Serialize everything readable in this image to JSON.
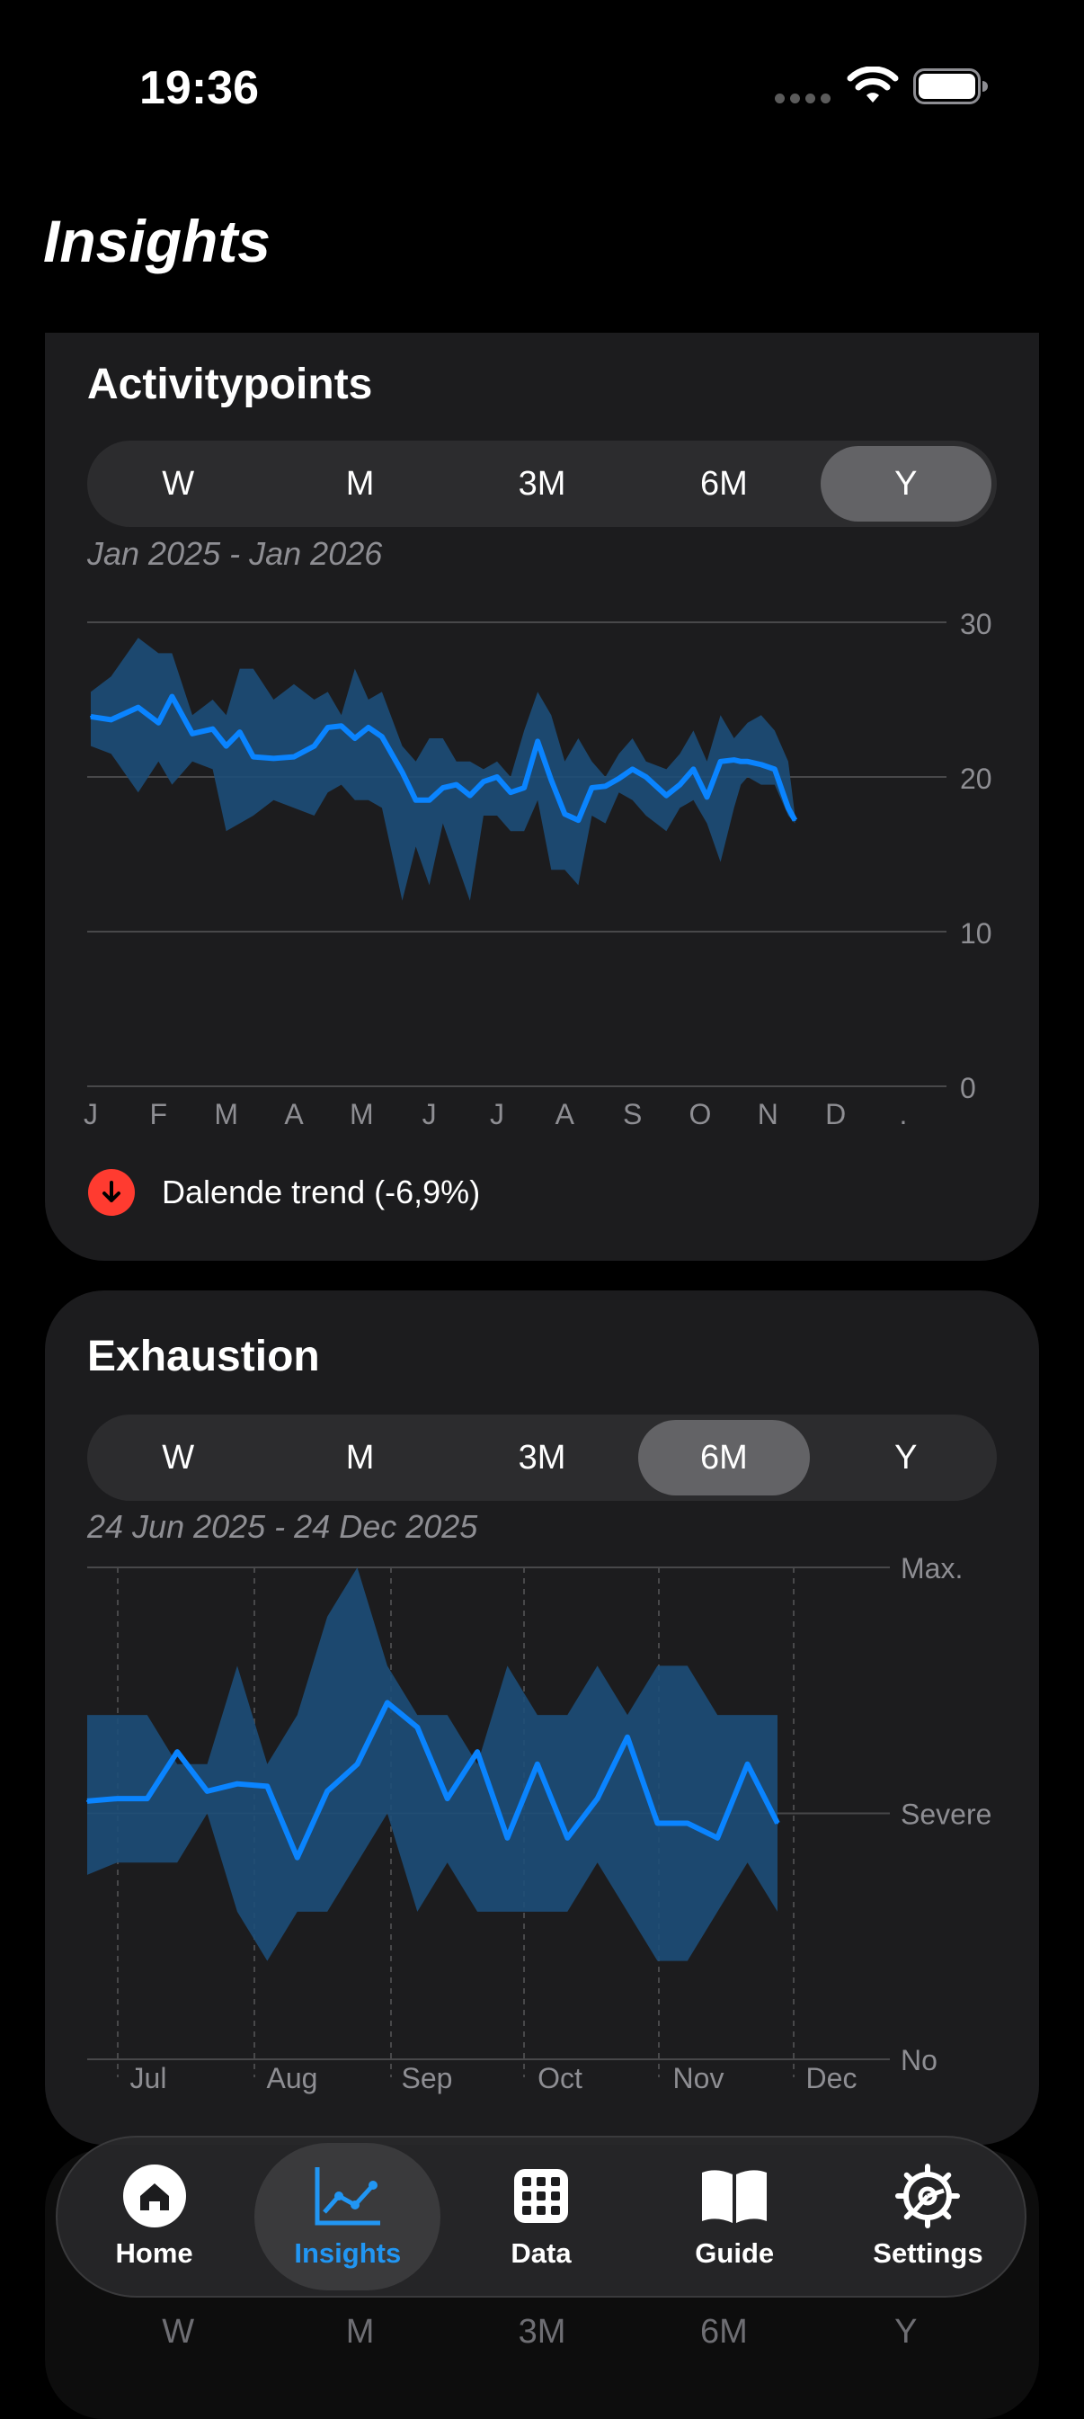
{
  "status": {
    "time": "19:36"
  },
  "page": {
    "title": "Insights"
  },
  "activity": {
    "title": "Activitypoints",
    "periods": [
      "W",
      "M",
      "3M",
      "6M",
      "Y"
    ],
    "selected": "Y",
    "date_range": "Jan 2025 - Jan 2026",
    "trend_text": "Dalende trend (-6,9%)"
  },
  "exhaustion": {
    "title": "Exhaustion",
    "periods": [
      "W",
      "M",
      "3M",
      "6M",
      "Y"
    ],
    "selected": "6M",
    "date_range": "24 Jun 2025 - 24 Dec 2025"
  },
  "tabs": [
    {
      "label": "Home",
      "icon": "house-icon",
      "active": false
    },
    {
      "label": "Insights",
      "icon": "chart-line-icon",
      "active": true
    },
    {
      "label": "Data",
      "icon": "grid-icon",
      "active": false
    },
    {
      "label": "Guide",
      "icon": "book-icon",
      "active": false
    },
    {
      "label": "Settings",
      "icon": "gear-icon",
      "active": false
    }
  ],
  "colors": {
    "line": "#0a84ff",
    "band": "#1d4e78",
    "trend_down": "#ff3b30"
  },
  "chart_data": [
    {
      "type": "line",
      "title": "Activitypoints",
      "x_tick_labels": [
        "J",
        "F",
        "M",
        "A",
        "M",
        "J",
        "J",
        "A",
        "S",
        "O",
        "N",
        "D",
        "."
      ],
      "y_ticks": [
        0,
        10,
        20,
        30
      ],
      "ylim": [
        0,
        30
      ],
      "grid": true,
      "x": [
        0,
        0.3,
        0.7,
        1.0,
        1.2,
        1.5,
        1.8,
        2.0,
        2.2,
        2.4,
        2.7,
        3.0,
        3.3,
        3.5,
        3.7,
        3.9,
        4.1,
        4.3,
        4.6,
        4.8,
        5.0,
        5.2,
        5.4,
        5.6,
        5.8,
        6.0,
        6.2,
        6.4,
        6.6,
        6.8,
        7.0,
        7.2,
        7.4,
        7.6,
        7.8,
        8.0,
        8.2,
        8.5,
        8.7,
        8.9,
        9.1,
        9.3,
        9.5,
        9.6,
        9.7,
        9.9,
        10.1,
        10.3,
        10.4
      ],
      "series": [
        {
          "values": [
            23.9,
            23.7,
            24.5,
            23.5,
            25.2,
            22.8,
            23.1,
            22.0,
            22.9,
            21.3,
            21.2,
            21.3,
            22.0,
            23.2,
            23.3,
            22.5,
            23.2,
            22.6,
            20.3,
            18.5,
            18.5,
            19.3,
            19.5,
            18.8,
            19.7,
            20.0,
            19.0,
            19.3,
            22.3,
            19.8,
            17.6,
            17.2,
            19.3,
            19.4,
            19.9,
            20.5,
            20.0,
            18.8,
            19.5,
            20.5,
            18.7,
            21.0,
            21.1,
            21.0,
            21.0,
            20.8,
            20.5,
            18.0,
            17.2
          ]
        },
        {
          "band_high": [
            25.5,
            26.5,
            29.0,
            28.0,
            28.0,
            24.0,
            25.0,
            24.0,
            27.0,
            27.0,
            25.0,
            26.0,
            25.0,
            25.5,
            24.0,
            27.0,
            25.0,
            25.5,
            22.0,
            21.0,
            22.5,
            22.5,
            21.0,
            21.0,
            20.5,
            21.0,
            20.0,
            23.0,
            25.5,
            24.0,
            21.0,
            22.5,
            21.0,
            20.0,
            21.5,
            22.5,
            21.0,
            20.5,
            21.5,
            23.0,
            21.0,
            24.0,
            22.5,
            23.0,
            23.5,
            24.0,
            23.0,
            21.0,
            17.5
          ]
        },
        {
          "band_low": [
            22.0,
            21.5,
            19.0,
            21.0,
            19.5,
            21.0,
            20.5,
            16.5,
            17.0,
            17.5,
            18.5,
            18.0,
            17.5,
            19.0,
            19.5,
            18.5,
            18.5,
            18.0,
            12.0,
            15.5,
            13.0,
            17.0,
            14.5,
            12.0,
            17.5,
            17.5,
            16.5,
            16.5,
            18.5,
            14.0,
            14.0,
            13.0,
            17.5,
            17.0,
            19.0,
            18.5,
            17.5,
            16.5,
            18.0,
            18.5,
            17.0,
            14.5,
            18.0,
            19.5,
            20.0,
            19.5,
            19.5,
            17.5,
            17.0
          ]
        }
      ]
    },
    {
      "type": "line",
      "title": "Exhaustion",
      "x_tick_labels": [
        "Jul",
        "Aug",
        "Sep",
        "Oct",
        "Nov",
        "Dec"
      ],
      "y_tick_labels": [
        "No",
        "Severe",
        "Max."
      ],
      "ylim": [
        0,
        2
      ],
      "grid": true,
      "series": [
        {
          "values": [
            1.05,
            1.06,
            1.06,
            1.25,
            1.09,
            1.12,
            1.11,
            0.82,
            1.09,
            1.2,
            1.45,
            1.35,
            1.06,
            1.25,
            0.9,
            1.2,
            0.9,
            1.06,
            1.31,
            0.96,
            0.96,
            0.9,
            1.2,
            0.96
          ]
        },
        {
          "band_high": [
            1.4,
            1.4,
            1.4,
            1.2,
            1.2,
            1.6,
            1.2,
            1.4,
            1.8,
            2.0,
            1.6,
            1.4,
            1.4,
            1.2,
            1.6,
            1.4,
            1.4,
            1.6,
            1.4,
            1.6,
            1.6,
            1.4,
            1.4,
            1.4
          ]
        },
        {
          "band_low": [
            0.75,
            0.8,
            0.8,
            0.8,
            1.0,
            0.6,
            0.4,
            0.6,
            0.6,
            0.8,
            1.0,
            0.6,
            0.8,
            0.6,
            0.6,
            0.6,
            0.6,
            0.8,
            0.6,
            0.4,
            0.4,
            0.6,
            0.8,
            0.6
          ]
        }
      ]
    }
  ]
}
